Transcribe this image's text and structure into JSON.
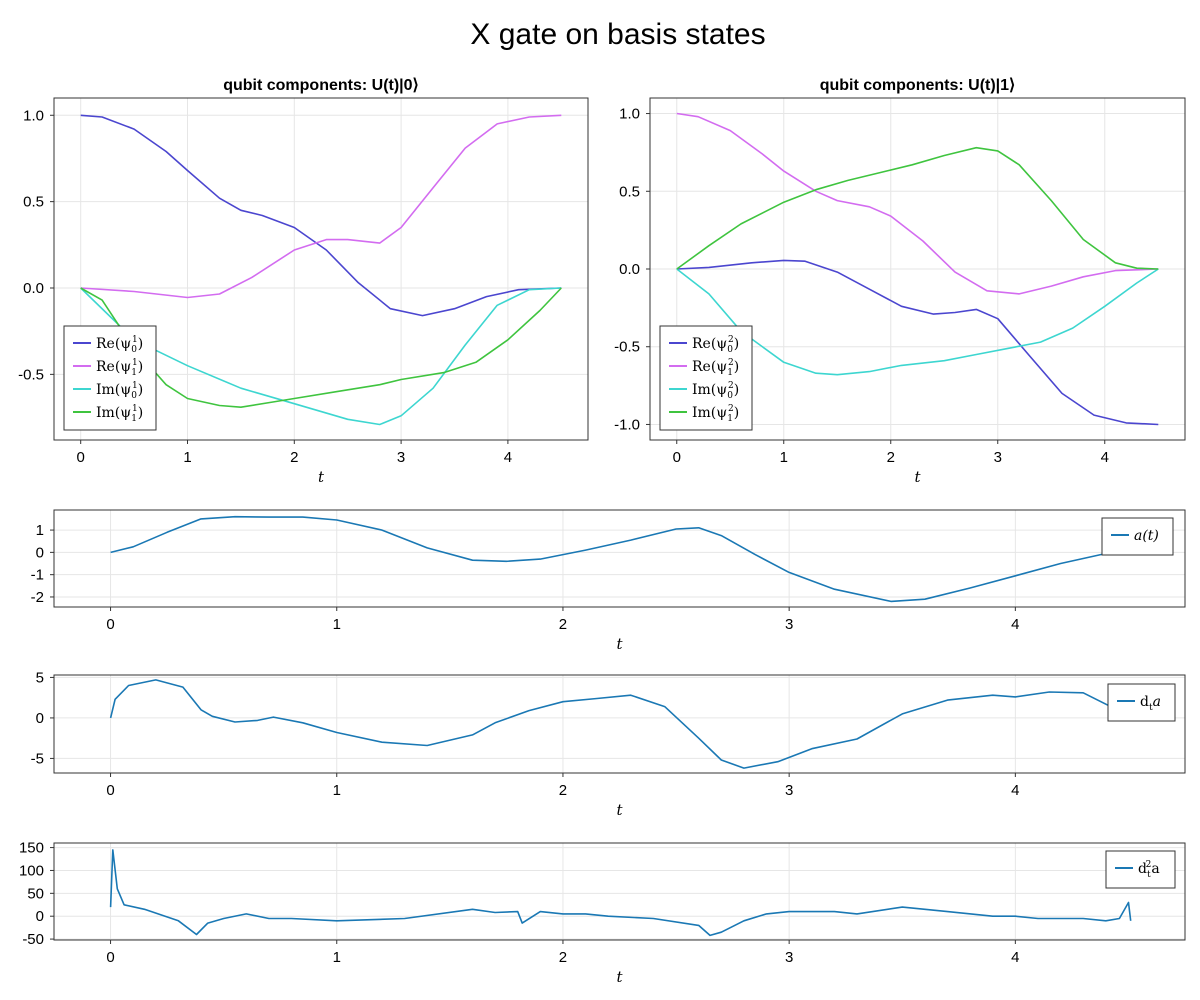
{
  "figure": {
    "title": "X gate on basis states"
  },
  "chart_data": [
    {
      "type": "line",
      "title": "qubit components: U(t)|0⟩",
      "xlabel": "t",
      "ylabel": "",
      "xlim": [
        -0.25,
        4.75
      ],
      "ylim": [
        -0.88,
        1.1
      ],
      "xticks": [
        0,
        1,
        2,
        3,
        4
      ],
      "xtick_labels": [
        "0",
        "1",
        "2",
        "3",
        "4"
      ],
      "yticks": [
        1.0,
        0.5,
        0.0,
        -0.5
      ],
      "ytick_labels": [
        "1.0",
        "0.5",
        "0.0",
        "-0.5"
      ],
      "grid": true,
      "legend": "bottom-left",
      "series": [
        {
          "name": "Re(ψ01)",
          "legend_label": [
            "Re(ψ",
            "0",
            "1",
            ")"
          ],
          "color": "#4b46cf",
          "x": [
            0,
            0.2,
            0.5,
            0.8,
            1.0,
            1.3,
            1.5,
            1.7,
            2.0,
            2.3,
            2.6,
            2.9,
            3.2,
            3.5,
            3.8,
            4.1,
            4.5
          ],
          "y": [
            1.0,
            0.99,
            0.92,
            0.79,
            0.68,
            0.52,
            0.45,
            0.42,
            0.35,
            0.22,
            0.03,
            -0.12,
            -0.16,
            -0.12,
            -0.05,
            -0.01,
            0.0
          ]
        },
        {
          "name": "Re(ψ11)",
          "legend_label": [
            "Re(ψ",
            "1",
            "1",
            ")"
          ],
          "color": "#d36cf0",
          "x": [
            0,
            0.5,
            1.0,
            1.3,
            1.6,
            2.0,
            2.3,
            2.5,
            2.8,
            3.0,
            3.3,
            3.6,
            3.9,
            4.2,
            4.5
          ],
          "y": [
            0.0,
            -0.02,
            -0.055,
            -0.035,
            0.06,
            0.22,
            0.28,
            0.28,
            0.26,
            0.35,
            0.58,
            0.81,
            0.95,
            0.99,
            1.0
          ]
        },
        {
          "name": "Im(ψ01)",
          "legend_label": [
            "Im(ψ",
            "0",
            "1",
            ")"
          ],
          "color": "#3dd6d0",
          "x": [
            0,
            0.5,
            1.0,
            1.5,
            2.0,
            2.5,
            2.8,
            3.0,
            3.3,
            3.6,
            3.9,
            4.2,
            4.5
          ],
          "y": [
            0.0,
            -0.3,
            -0.45,
            -0.58,
            -0.67,
            -0.76,
            -0.79,
            -0.74,
            -0.58,
            -0.33,
            -0.1,
            -0.01,
            0.0
          ]
        },
        {
          "name": "Im(ψ11)",
          "legend_label": [
            "Im(ψ",
            "1",
            "1",
            ")"
          ],
          "color": "#3fc43f",
          "x": [
            0,
            0.2,
            0.5,
            0.8,
            1.0,
            1.3,
            1.5,
            1.8,
            2.0,
            2.4,
            2.8,
            3.0,
            3.4,
            3.7,
            4.0,
            4.3,
            4.5
          ],
          "y": [
            0.0,
            -0.07,
            -0.35,
            -0.56,
            -0.64,
            -0.68,
            -0.69,
            -0.66,
            -0.64,
            -0.6,
            -0.56,
            -0.53,
            -0.49,
            -0.43,
            -0.3,
            -0.13,
            0.0
          ]
        }
      ]
    },
    {
      "type": "line",
      "title": "qubit components: U(t)|1⟩",
      "xlabel": "t",
      "ylabel": "",
      "xlim": [
        -0.25,
        4.75
      ],
      "ylim": [
        -1.1,
        1.1
      ],
      "xticks": [
        0,
        1,
        2,
        3,
        4
      ],
      "xtick_labels": [
        "0",
        "1",
        "2",
        "3",
        "4"
      ],
      "yticks": [
        1.0,
        0.5,
        0.0,
        -0.5,
        -1.0
      ],
      "ytick_labels": [
        "1.0",
        "0.5",
        "0.0",
        "-0.5",
        "-1.0"
      ],
      "grid": true,
      "legend": "bottom-left",
      "series": [
        {
          "name": "Re(ψ02)",
          "legend_label": [
            "Re(ψ",
            "0",
            "2",
            ")"
          ],
          "color": "#4b46cf",
          "x": [
            0,
            0.3,
            0.7,
            1.0,
            1.2,
            1.5,
            1.8,
            2.1,
            2.4,
            2.6,
            2.8,
            3.0,
            3.3,
            3.6,
            3.9,
            4.2,
            4.5
          ],
          "y": [
            0.0,
            0.01,
            0.04,
            0.055,
            0.05,
            -0.02,
            -0.13,
            -0.24,
            -0.29,
            -0.28,
            -0.26,
            -0.32,
            -0.56,
            -0.8,
            -0.94,
            -0.99,
            -1.0
          ]
        },
        {
          "name": "Re(ψ12)",
          "legend_label": [
            "Re(ψ",
            "1",
            "2",
            ")"
          ],
          "color": "#d36cf0",
          "x": [
            0,
            0.2,
            0.5,
            0.8,
            1.0,
            1.3,
            1.5,
            1.8,
            2.0,
            2.3,
            2.6,
            2.9,
            3.2,
            3.5,
            3.8,
            4.1,
            4.5
          ],
          "y": [
            1.0,
            0.98,
            0.89,
            0.74,
            0.63,
            0.5,
            0.44,
            0.4,
            0.34,
            0.18,
            -0.02,
            -0.14,
            -0.16,
            -0.11,
            -0.05,
            -0.01,
            0.0
          ]
        },
        {
          "name": "Im(ψ02)",
          "legend_label": [
            "Im(ψ",
            "0",
            "2",
            ")"
          ],
          "color": "#3dd6d0",
          "x": [
            0,
            0.3,
            0.6,
            1.0,
            1.3,
            1.5,
            1.8,
            2.1,
            2.5,
            2.8,
            3.1,
            3.4,
            3.7,
            4.0,
            4.3,
            4.5
          ],
          "y": [
            0.0,
            -0.16,
            -0.4,
            -0.6,
            -0.67,
            -0.68,
            -0.66,
            -0.62,
            -0.59,
            -0.55,
            -0.51,
            -0.47,
            -0.38,
            -0.24,
            -0.09,
            0.0
          ]
        },
        {
          "name": "Im(ψ12)",
          "legend_label": [
            "Im(ψ",
            "1",
            "2",
            ")"
          ],
          "color": "#3fc43f",
          "x": [
            0,
            0.3,
            0.6,
            1.0,
            1.3,
            1.6,
            1.9,
            2.2,
            2.5,
            2.8,
            3.0,
            3.2,
            3.5,
            3.8,
            4.1,
            4.3,
            4.5
          ],
          "y": [
            0.0,
            0.15,
            0.29,
            0.43,
            0.51,
            0.57,
            0.62,
            0.67,
            0.73,
            0.78,
            0.76,
            0.67,
            0.44,
            0.19,
            0.04,
            0.005,
            0.0
          ]
        }
      ]
    },
    {
      "type": "line",
      "title": "",
      "xlabel": "t",
      "ylabel": "",
      "xlim": [
        -0.25,
        4.75
      ],
      "ylim": [
        -2.45,
        1.9
      ],
      "xticks": [
        0,
        1,
        2,
        3,
        4
      ],
      "xtick_labels": [
        "0",
        "1",
        "2",
        "3",
        "4"
      ],
      "yticks": [
        1,
        0,
        -1,
        -2
      ],
      "ytick_labels": [
        "1",
        "0",
        "-1",
        "-2"
      ],
      "grid": true,
      "legend": "right",
      "series": [
        {
          "name": "a(t)",
          "legend_label": [
            "a(t)"
          ],
          "color": "#1a78b4",
          "x": [
            0,
            0.1,
            0.25,
            0.4,
            0.55,
            0.7,
            0.85,
            1.0,
            1.2,
            1.4,
            1.6,
            1.75,
            1.9,
            2.1,
            2.3,
            2.5,
            2.6,
            2.7,
            2.85,
            3.0,
            3.2,
            3.45,
            3.6,
            3.8,
            4.0,
            4.2,
            4.4,
            4.5
          ],
          "y": [
            0.0,
            0.25,
            0.9,
            1.5,
            1.6,
            1.58,
            1.58,
            1.45,
            1.0,
            0.2,
            -0.35,
            -0.4,
            -0.3,
            0.1,
            0.55,
            1.05,
            1.1,
            0.75,
            -0.1,
            -0.9,
            -1.65,
            -2.2,
            -2.1,
            -1.6,
            -1.05,
            -0.5,
            -0.05,
            0.0
          ]
        }
      ]
    },
    {
      "type": "line",
      "title": "",
      "xlabel": "t",
      "ylabel": "",
      "xlim": [
        -0.25,
        4.75
      ],
      "ylim": [
        -6.8,
        5.3
      ],
      "xticks": [
        0,
        1,
        2,
        3,
        4
      ],
      "xtick_labels": [
        "0",
        "1",
        "2",
        "3",
        "4"
      ],
      "yticks": [
        5,
        0,
        -5
      ],
      "ytick_labels": [
        "5",
        "0",
        "-5"
      ],
      "grid": true,
      "legend": "right",
      "series": [
        {
          "name": "dta",
          "legend_label": [
            "d",
            "t",
            "",
            "a"
          ],
          "color": "#1a78b4",
          "x": [
            0,
            0.02,
            0.08,
            0.2,
            0.32,
            0.4,
            0.45,
            0.55,
            0.65,
            0.72,
            0.85,
            1.0,
            1.2,
            1.4,
            1.6,
            1.7,
            1.85,
            2.0,
            2.15,
            2.3,
            2.45,
            2.6,
            2.7,
            2.8,
            2.95,
            3.1,
            3.3,
            3.5,
            3.7,
            3.9,
            4.0,
            4.15,
            4.3,
            4.45
          ],
          "y": [
            0.0,
            2.3,
            4.0,
            4.7,
            3.8,
            1.0,
            0.2,
            -0.5,
            -0.3,
            0.1,
            -0.6,
            -1.8,
            -3.0,
            -3.4,
            -2.1,
            -0.6,
            0.9,
            2.0,
            2.4,
            2.8,
            1.4,
            -2.5,
            -5.2,
            -6.2,
            -5.4,
            -3.8,
            -2.6,
            0.5,
            2.2,
            2.8,
            2.6,
            3.2,
            3.1,
            1.0
          ]
        }
      ]
    },
    {
      "type": "line",
      "title": "",
      "xlabel": "t",
      "ylabel": "",
      "xlim": [
        -0.25,
        4.75
      ],
      "ylim": [
        -52,
        160
      ],
      "xticks": [
        0,
        1,
        2,
        3,
        4
      ],
      "xtick_labels": [
        "0",
        "1",
        "2",
        "3",
        "4"
      ],
      "yticks": [
        150,
        100,
        50,
        0,
        -50
      ],
      "ytick_labels": [
        "150",
        "100",
        "50",
        "0",
        "-50"
      ],
      "grid": true,
      "legend": "right",
      "series": [
        {
          "name": "dt2a",
          "legend_label": [
            "d",
            "t",
            "2",
            "a"
          ],
          "color": "#1a78b4",
          "x": [
            0,
            0.01,
            0.03,
            0.06,
            0.15,
            0.3,
            0.38,
            0.43,
            0.5,
            0.6,
            0.7,
            0.8,
            1.0,
            1.3,
            1.6,
            1.7,
            1.8,
            1.82,
            1.9,
            2.0,
            2.1,
            2.2,
            2.4,
            2.6,
            2.65,
            2.7,
            2.8,
            2.9,
            3.0,
            3.2,
            3.3,
            3.5,
            3.7,
            3.9,
            4.0,
            4.1,
            4.2,
            4.3,
            4.4,
            4.46,
            4.5,
            4.51
          ],
          "y": [
            20,
            145,
            60,
            25,
            15,
            -10,
            -40,
            -15,
            -5,
            5,
            -5,
            -5,
            -10,
            -5,
            15,
            8,
            10,
            -15,
            10,
            5,
            5,
            0,
            -5,
            -20,
            -42,
            -35,
            -10,
            5,
            10,
            10,
            5,
            20,
            10,
            0,
            0,
            -5,
            -5,
            -5,
            -10,
            -5,
            30,
            -10
          ]
        }
      ]
    }
  ]
}
